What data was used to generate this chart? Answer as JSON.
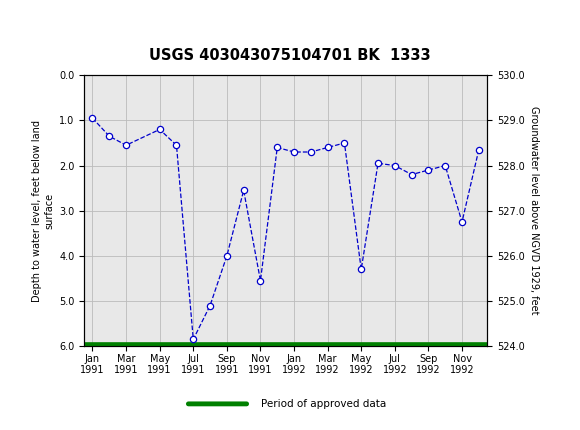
{
  "title": "USGS 403043075104701 BK  1333",
  "header_bg_color": "#1a6b3c",
  "plot_bg_color": "#e8e8e8",
  "line_color": "#0000cc",
  "marker_color": "#0000cc",
  "legend_line_color": "#008000",
  "y_left_label_lines": [
    "Depth to water level, feet below land",
    "surface"
  ],
  "y_right_label": "Groundwater level above NGVD 1929, feet",
  "ylim_left": [
    6.0,
    0.0
  ],
  "ylim_right": [
    524.0,
    530.0
  ],
  "yticks_left": [
    0.0,
    1.0,
    2.0,
    3.0,
    4.0,
    5.0,
    6.0
  ],
  "yticks_right": [
    524.0,
    525.0,
    526.0,
    527.0,
    528.0,
    529.0,
    530.0
  ],
  "depths": [
    0.95,
    1.35,
    1.55,
    null,
    1.2,
    1.55,
    5.85,
    5.1,
    4.0,
    2.55,
    4.55,
    1.6,
    1.7,
    1.7,
    1.6,
    1.5,
    4.3,
    1.95,
    2.0,
    2.2,
    2.1,
    2.0,
    3.25,
    1.65
  ],
  "xtick_labels": [
    "Jan\n1991",
    "Mar\n1991",
    "May\n1991",
    "Jul\n1991",
    "Sep\n1991",
    "Nov\n1991",
    "Jan\n1992",
    "Mar\n1992",
    "May\n1992",
    "Jul\n1992",
    "Sep\n1992",
    "Nov\n1992"
  ],
  "xtick_positions": [
    0,
    2,
    4,
    6,
    8,
    10,
    12,
    14,
    16,
    18,
    20,
    22
  ],
  "legend_label": "Period of approved data",
  "grid_color": "#bbbbbb"
}
